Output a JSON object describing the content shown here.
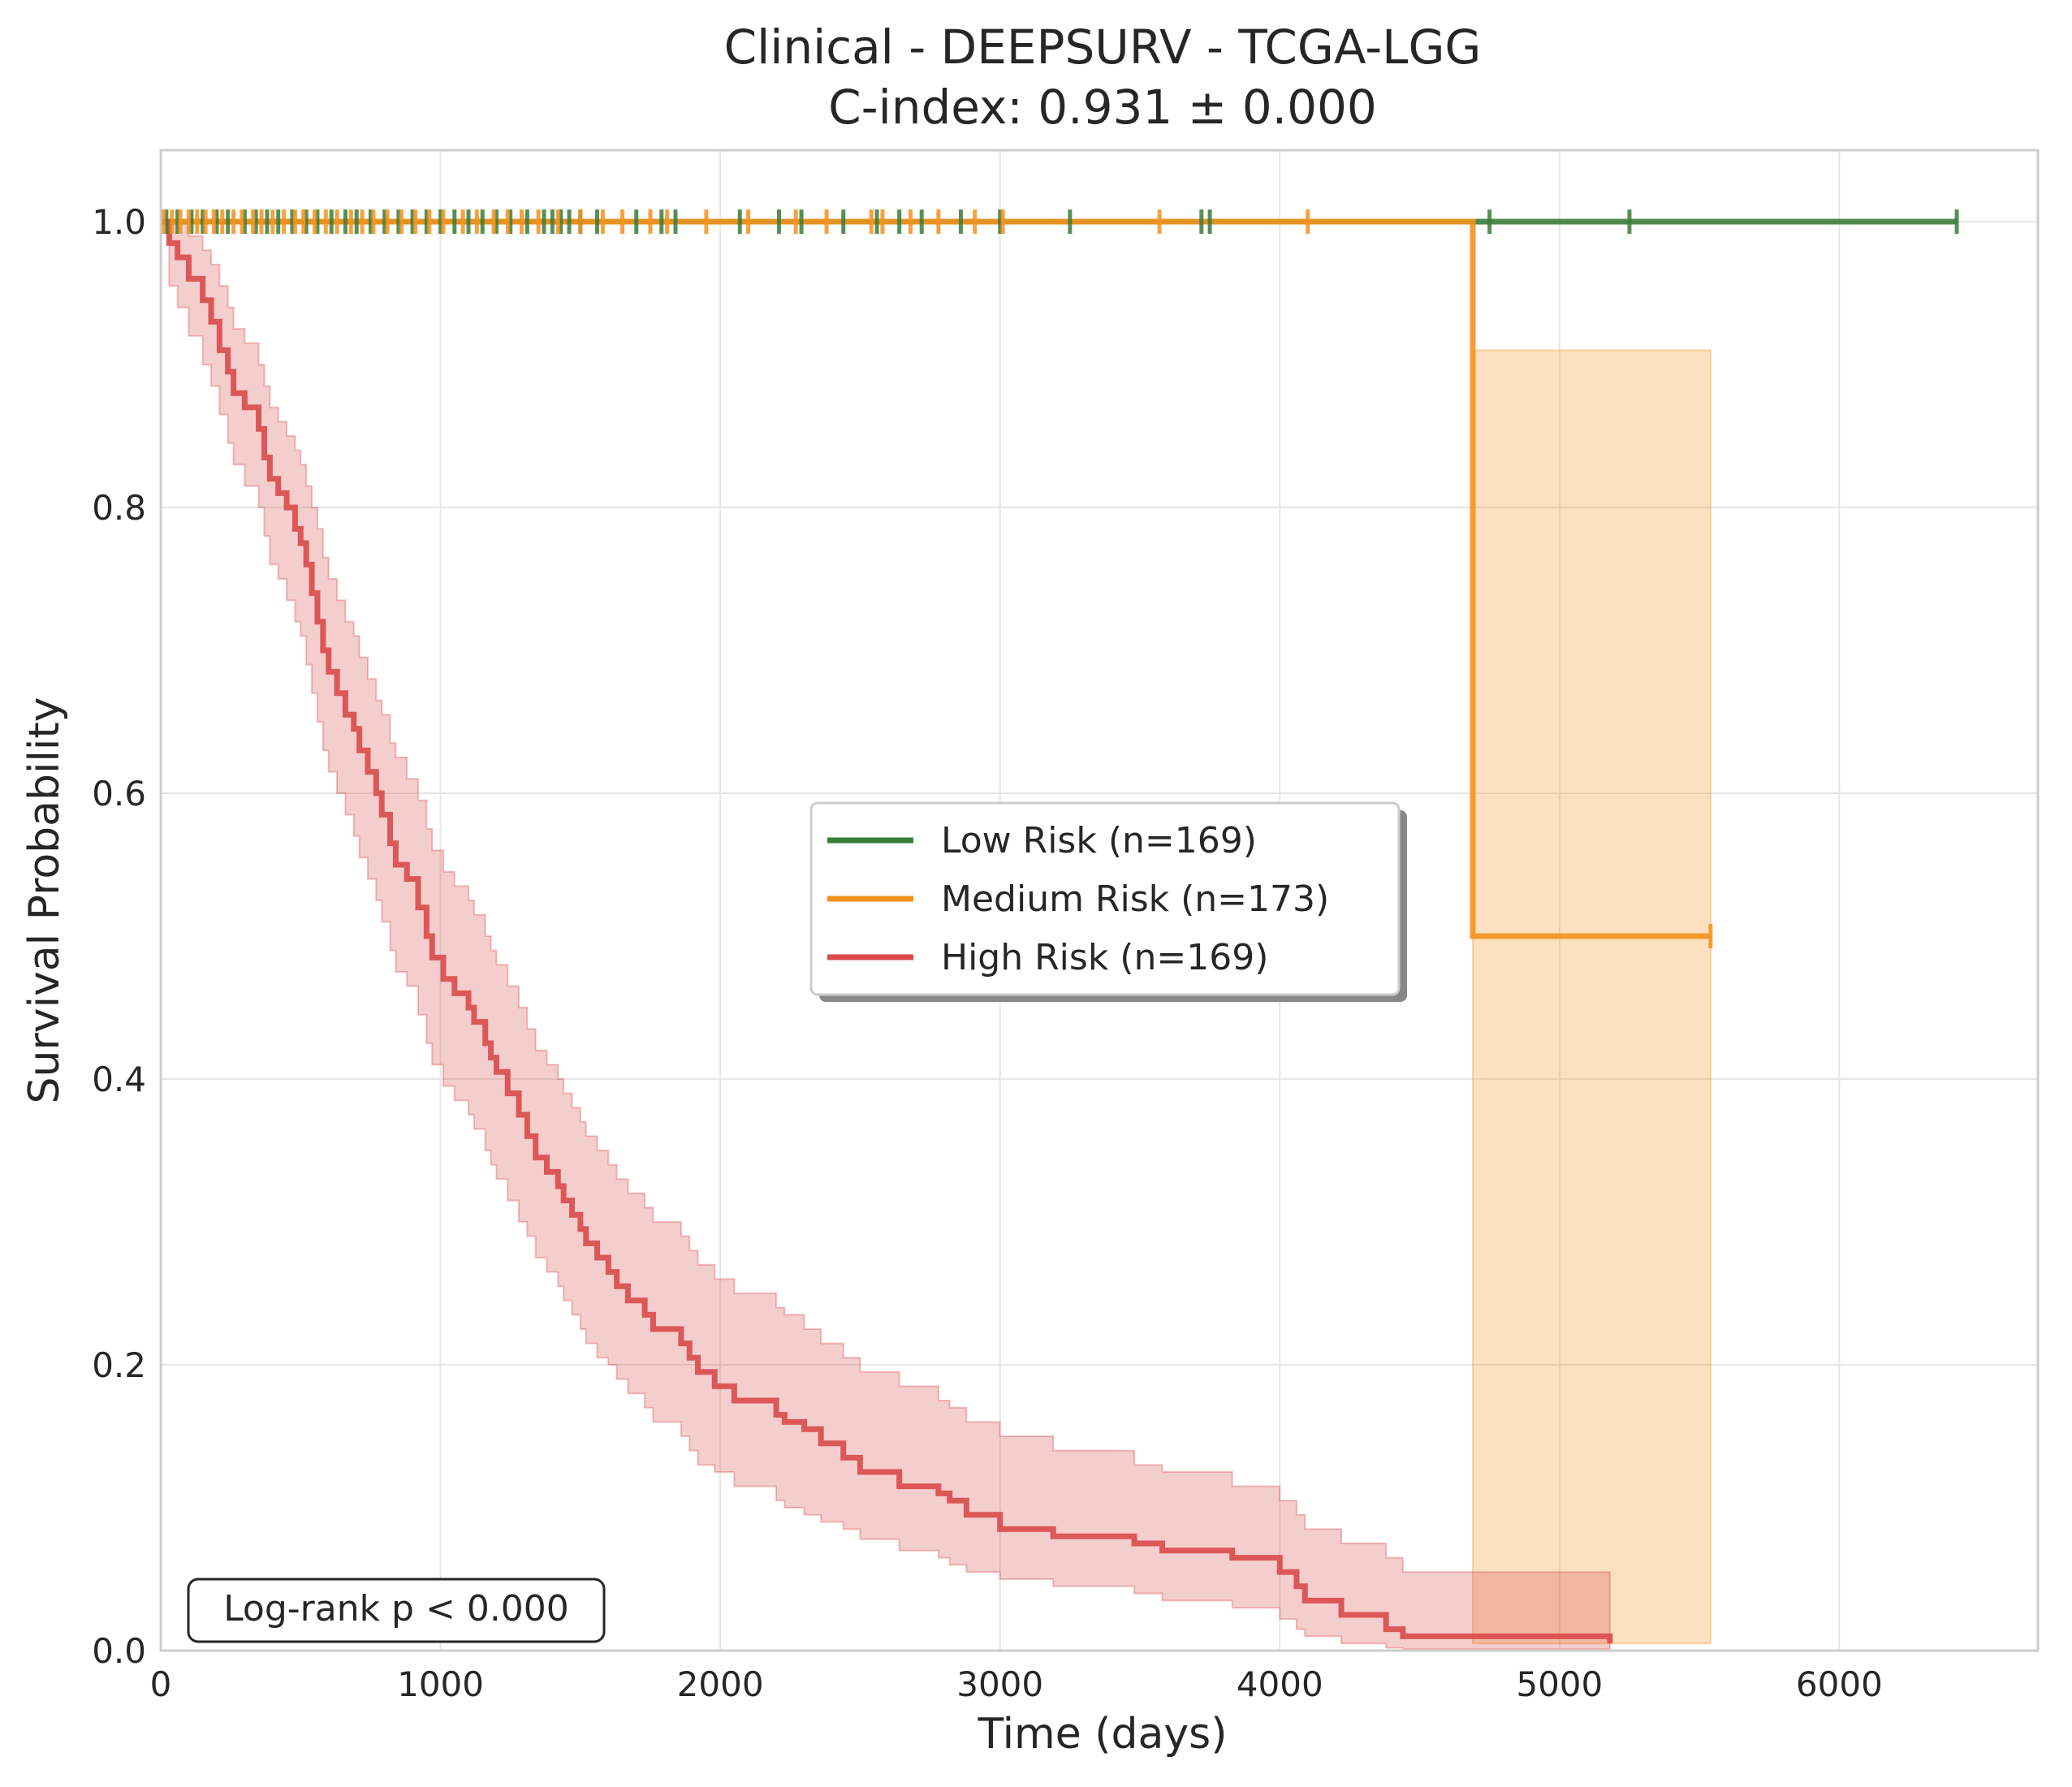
{
  "chart_data": {
    "type": "line",
    "title": "Clinical - DEEPSURV - TCGA-LGG",
    "subtitle": "C-index: 0.931 ± 0.000",
    "xlabel": "Time (days)",
    "ylabel": "Survival Probability",
    "xlim": [
      0,
      6710
    ],
    "ylim": [
      0,
      1.05
    ],
    "x_ticks": [
      "0",
      "1000",
      "2000",
      "3000",
      "4000",
      "5000",
      "6000"
    ],
    "y_ticks": [
      "0.0",
      "0.2",
      "0.4",
      "0.6",
      "0.8",
      "1.0"
    ],
    "grid": true,
    "legend_position": "center",
    "annotation": "Log-rank p < 0.000",
    "series": [
      {
        "name": "Low Risk (n=169)",
        "color": "#3a7d3a",
        "x": [
          0,
          6420
        ],
        "y": [
          1.0,
          1.0
        ],
        "censor_x": [
          20,
          60,
          110,
          150,
          200,
          240,
          300,
          340,
          380,
          420,
          470,
          520,
          560,
          610,
          660,
          700,
          750,
          800,
          850,
          900,
          950,
          1000,
          1050,
          1100,
          1150,
          1200,
          1250,
          1310,
          1370,
          1400,
          1430,
          1460,
          1500,
          1560,
          1700,
          1790,
          1840,
          2070,
          2210,
          2290,
          2440,
          2560,
          2640,
          2720,
          2860,
          3000,
          3250,
          3720,
          3750,
          4750,
          5250,
          6420
        ]
      },
      {
        "name": "Medium Risk (n=173)",
        "color": "#f5921e",
        "x": [
          0,
          4690,
          4690,
          5540
        ],
        "y": [
          1.0,
          1.0,
          0.5,
          0.5
        ],
        "ci_x": [
          4690,
          5540
        ],
        "ci_lower": [
          0.005,
          0.005
        ],
        "ci_upper": [
          0.91,
          0.91
        ],
        "censor_x": [
          10,
          40,
          70,
          100,
          130,
          160,
          190,
          220,
          260,
          290,
          330,
          360,
          400,
          440,
          480,
          510,
          550,
          590,
          630,
          680,
          720,
          760,
          810,
          860,
          910,
          960,
          1010,
          1080,
          1130,
          1190,
          1240,
          1290,
          1350,
          1420,
          1500,
          1580,
          1650,
          1750,
          1810,
          1950,
          2100,
          2270,
          2380,
          2540,
          2580,
          2680,
          2780,
          2910,
          3010,
          3570,
          4100,
          5540
        ]
      },
      {
        "name": "High Risk (n=169)",
        "color": "#d94a4a",
        "x": [
          0,
          30,
          60,
          100,
          150,
          180,
          210,
          240,
          260,
          300,
          350,
          370,
          390,
          420,
          450,
          480,
          500,
          520,
          540,
          560,
          580,
          600,
          630,
          660,
          690,
          710,
          740,
          770,
          790,
          820,
          840,
          880,
          920,
          950,
          970,
          1010,
          1050,
          1100,
          1120,
          1160,
          1180,
          1200,
          1240,
          1280,
          1310,
          1340,
          1380,
          1420,
          1440,
          1470,
          1500,
          1520,
          1560,
          1600,
          1630,
          1670,
          1730,
          1760,
          1860,
          1890,
          1920,
          1980,
          2050,
          2200,
          2230,
          2300,
          2360,
          2440,
          2500,
          2640,
          2780,
          2820,
          2880,
          3000,
          3190,
          3480,
          3580,
          3830,
          4000,
          4060,
          4090,
          4220,
          4380,
          4440,
          5180
        ],
        "y": [
          1.0,
          0.985,
          0.975,
          0.96,
          0.945,
          0.93,
          0.91,
          0.895,
          0.88,
          0.87,
          0.855,
          0.835,
          0.82,
          0.81,
          0.8,
          0.785,
          0.775,
          0.76,
          0.74,
          0.72,
          0.7,
          0.685,
          0.67,
          0.655,
          0.645,
          0.63,
          0.615,
          0.6,
          0.585,
          0.565,
          0.55,
          0.54,
          0.52,
          0.5,
          0.485,
          0.47,
          0.46,
          0.45,
          0.44,
          0.425,
          0.415,
          0.405,
          0.39,
          0.375,
          0.36,
          0.345,
          0.335,
          0.325,
          0.315,
          0.305,
          0.295,
          0.285,
          0.275,
          0.265,
          0.255,
          0.245,
          0.235,
          0.225,
          0.215,
          0.205,
          0.195,
          0.185,
          0.175,
          0.165,
          0.16,
          0.155,
          0.145,
          0.135,
          0.125,
          0.115,
          0.11,
          0.105,
          0.095,
          0.085,
          0.08,
          0.075,
          0.07,
          0.065,
          0.055,
          0.045,
          0.035,
          0.025,
          0.015,
          0.01,
          0.005
        ],
        "ci_lower": [
          1.0,
          0.955,
          0.94,
          0.92,
          0.9,
          0.885,
          0.865,
          0.845,
          0.83,
          0.815,
          0.8,
          0.78,
          0.76,
          0.75,
          0.735,
          0.72,
          0.71,
          0.69,
          0.67,
          0.65,
          0.63,
          0.615,
          0.6,
          0.585,
          0.57,
          0.555,
          0.54,
          0.525,
          0.51,
          0.49,
          0.475,
          0.465,
          0.445,
          0.425,
          0.41,
          0.395,
          0.385,
          0.375,
          0.365,
          0.35,
          0.34,
          0.33,
          0.315,
          0.3,
          0.29,
          0.275,
          0.265,
          0.255,
          0.245,
          0.235,
          0.225,
          0.215,
          0.205,
          0.2,
          0.19,
          0.18,
          0.17,
          0.16,
          0.15,
          0.14,
          0.13,
          0.125,
          0.115,
          0.105,
          0.1,
          0.095,
          0.09,
          0.085,
          0.078,
          0.07,
          0.065,
          0.06,
          0.055,
          0.05,
          0.045,
          0.04,
          0.035,
          0.03,
          0.022,
          0.015,
          0.01,
          0.005,
          0.002,
          0.001,
          0.0
        ],
        "ci_upper": [
          1.0,
          1.0,
          1.0,
          0.99,
          0.98,
          0.97,
          0.955,
          0.94,
          0.925,
          0.915,
          0.9,
          0.885,
          0.87,
          0.86,
          0.85,
          0.84,
          0.83,
          0.815,
          0.8,
          0.785,
          0.765,
          0.75,
          0.735,
          0.72,
          0.71,
          0.695,
          0.68,
          0.665,
          0.655,
          0.635,
          0.625,
          0.61,
          0.595,
          0.575,
          0.56,
          0.545,
          0.535,
          0.525,
          0.515,
          0.5,
          0.49,
          0.48,
          0.465,
          0.45,
          0.435,
          0.42,
          0.41,
          0.4,
          0.39,
          0.38,
          0.37,
          0.36,
          0.35,
          0.34,
          0.33,
          0.32,
          0.31,
          0.3,
          0.29,
          0.28,
          0.27,
          0.26,
          0.25,
          0.24,
          0.235,
          0.225,
          0.215,
          0.205,
          0.195,
          0.185,
          0.175,
          0.17,
          0.16,
          0.15,
          0.14,
          0.13,
          0.125,
          0.115,
          0.105,
          0.095,
          0.085,
          0.075,
          0.065,
          0.055,
          0.05
        ]
      }
    ]
  }
}
